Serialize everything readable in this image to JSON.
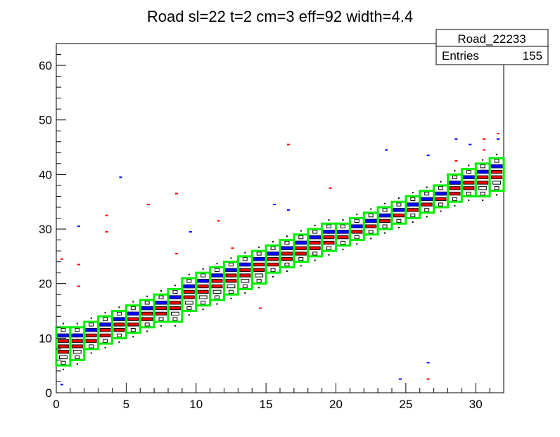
{
  "chart_data": {
    "type": "heatmap",
    "title": "Road sl=22 t=2 cm=3 eff=92 width=4.4",
    "xlabel": "",
    "ylabel": "",
    "xlim": [
      0,
      32
    ],
    "ylim": [
      0,
      64
    ],
    "x_ticks": [
      "0",
      "5",
      "10",
      "15",
      "20",
      "25",
      "30"
    ],
    "y_ticks": [
      "0",
      "10",
      "20",
      "30",
      "40",
      "50",
      "60"
    ],
    "stats_box": {
      "name": "Road_22233",
      "entries_label": "Entries",
      "entries_value": "155"
    },
    "colors": {
      "road_box": "#00ee00",
      "hits_red": "#ff0000",
      "hits_blue": "#0000ff",
      "hits_black": "#000000"
    },
    "road": {
      "x_bin_width": 1,
      "boxes": [
        {
          "x": 0,
          "ylo": 5,
          "yhi": 12
        },
        {
          "x": 1,
          "ylo": 6,
          "yhi": 12
        },
        {
          "x": 2,
          "ylo": 8,
          "yhi": 13
        },
        {
          "x": 3,
          "ylo": 9,
          "yhi": 14
        },
        {
          "x": 4,
          "ylo": 10,
          "yhi": 15
        },
        {
          "x": 5,
          "ylo": 11,
          "yhi": 16
        },
        {
          "x": 6,
          "ylo": 12,
          "yhi": 17
        },
        {
          "x": 7,
          "ylo": 13,
          "yhi": 18
        },
        {
          "x": 8,
          "ylo": 13,
          "yhi": 19
        },
        {
          "x": 9,
          "ylo": 15,
          "yhi": 21
        },
        {
          "x": 10,
          "ylo": 16,
          "yhi": 22
        },
        {
          "x": 11,
          "ylo": 17,
          "yhi": 23
        },
        {
          "x": 12,
          "ylo": 18,
          "yhi": 24
        },
        {
          "x": 13,
          "ylo": 19,
          "yhi": 25
        },
        {
          "x": 14,
          "ylo": 20,
          "yhi": 26
        },
        {
          "x": 15,
          "ylo": 22,
          "yhi": 27
        },
        {
          "x": 16,
          "ylo": 23,
          "yhi": 28
        },
        {
          "x": 17,
          "ylo": 24,
          "yhi": 29
        },
        {
          "x": 18,
          "ylo": 25,
          "yhi": 30
        },
        {
          "x": 19,
          "ylo": 26,
          "yhi": 31
        },
        {
          "x": 20,
          "ylo": 27,
          "yhi": 31
        },
        {
          "x": 21,
          "ylo": 28,
          "yhi": 32
        },
        {
          "x": 22,
          "ylo": 29,
          "yhi": 33
        },
        {
          "x": 23,
          "ylo": 30,
          "yhi": 34
        },
        {
          "x": 24,
          "ylo": 31,
          "yhi": 35
        },
        {
          "x": 25,
          "ylo": 32,
          "yhi": 36
        },
        {
          "x": 26,
          "ylo": 33,
          "yhi": 37
        },
        {
          "x": 27,
          "ylo": 34,
          "yhi": 38
        },
        {
          "x": 28,
          "ylo": 35,
          "yhi": 40
        },
        {
          "x": 29,
          "ylo": 36,
          "yhi": 41
        },
        {
          "x": 30,
          "ylo": 36,
          "yhi": 42
        },
        {
          "x": 31,
          "ylo": 37,
          "yhi": 43
        }
      ]
    },
    "outliers_red": [
      [
        0.4,
        24.5
      ],
      [
        1.6,
        23.5
      ],
      [
        1.6,
        19.5
      ],
      [
        3.6,
        32.5
      ],
      [
        3.6,
        29.5
      ],
      [
        6.6,
        34.5
      ],
      [
        8.6,
        36.5
      ],
      [
        8.6,
        25.5
      ],
      [
        11.6,
        31.5
      ],
      [
        12.6,
        26.5
      ],
      [
        14.6,
        15.5
      ],
      [
        16.6,
        45.5
      ],
      [
        19.6,
        37.5
      ],
      [
        26.6,
        2.5
      ],
      [
        28.6,
        42.5
      ],
      [
        30.6,
        46.5
      ],
      [
        30.6,
        44.5
      ],
      [
        31.6,
        47.5
      ]
    ],
    "outliers_blue": [
      [
        0.4,
        1.5
      ],
      [
        1.6,
        30.5
      ],
      [
        4.6,
        39.5
      ],
      [
        9.6,
        29.5
      ],
      [
        15.6,
        34.5
      ],
      [
        16.6,
        33.5
      ],
      [
        23.6,
        44.5
      ],
      [
        24.6,
        2.5
      ],
      [
        26.6,
        43.5
      ],
      [
        26.6,
        5.5
      ],
      [
        28.6,
        46.5
      ],
      [
        29.6,
        45.5
      ],
      [
        31.6,
        46.5
      ]
    ]
  }
}
